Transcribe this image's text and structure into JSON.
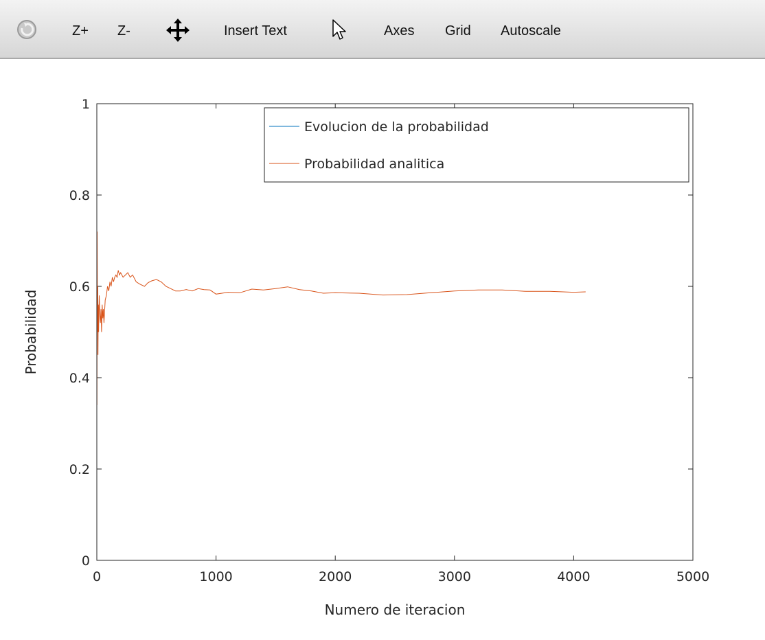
{
  "toolbar": {
    "items": [
      {
        "label": "Z+",
        "name": "zoom-in-button"
      },
      {
        "label": "Z-",
        "name": "zoom-out-button"
      },
      {
        "label": "Insert Text",
        "name": "insert-text-button"
      },
      {
        "label": "Axes",
        "name": "axes-button"
      },
      {
        "label": "Grid",
        "name": "grid-button"
      },
      {
        "label": "Autoscale",
        "name": "autoscale-button"
      }
    ],
    "icons": [
      "rotate-icon",
      "pan-icon",
      "select-pointer-icon"
    ]
  },
  "chart_data": {
    "type": "line",
    "title": "",
    "xlabel": "Numero de iteracion",
    "ylabel": "Probabilidad",
    "xlim": [
      0,
      5000
    ],
    "ylim": [
      0,
      1
    ],
    "x_ticks": [
      "0",
      "1000",
      "2000",
      "3000",
      "4000",
      "5000"
    ],
    "y_ticks": [
      "0",
      "0.2",
      "0.4",
      "0.6",
      "0.8",
      "1"
    ],
    "grid": false,
    "legend_position": "top-right",
    "series": [
      {
        "name": "Evolucion de la probabilidad",
        "color": "#0072bd",
        "x": [],
        "y": []
      },
      {
        "name": "Probabilidad analitica",
        "color": "#d95319",
        "x": [
          1,
          3,
          5,
          8,
          10,
          12,
          15,
          18,
          20,
          25,
          30,
          35,
          40,
          45,
          50,
          55,
          60,
          70,
          80,
          90,
          100,
          110,
          120,
          130,
          140,
          150,
          160,
          170,
          180,
          190,
          200,
          220,
          240,
          260,
          280,
          300,
          330,
          360,
          400,
          430,
          460,
          500,
          540,
          580,
          620,
          660,
          700,
          750,
          800,
          850,
          900,
          950,
          1000,
          1050,
          1100,
          1200,
          1300,
          1400,
          1500,
          1600,
          1700,
          1800,
          1900,
          2000,
          2200,
          2400,
          2600,
          2800,
          3000,
          3200,
          3400,
          3600,
          3800,
          4000,
          4100
        ],
        "y": [
          0.34,
          0.72,
          0.5,
          0.6,
          0.45,
          0.56,
          0.5,
          0.55,
          0.58,
          0.54,
          0.52,
          0.55,
          0.5,
          0.56,
          0.53,
          0.55,
          0.52,
          0.57,
          0.58,
          0.6,
          0.59,
          0.61,
          0.6,
          0.62,
          0.61,
          0.62,
          0.625,
          0.62,
          0.635,
          0.625,
          0.63,
          0.62,
          0.625,
          0.63,
          0.62,
          0.625,
          0.61,
          0.605,
          0.6,
          0.608,
          0.612,
          0.615,
          0.61,
          0.6,
          0.595,
          0.59,
          0.59,
          0.593,
          0.59,
          0.595,
          0.593,
          0.592,
          0.583,
          0.585,
          0.587,
          0.586,
          0.594,
          0.592,
          0.595,
          0.599,
          0.593,
          0.59,
          0.585,
          0.586,
          0.585,
          0.581,
          0.582,
          0.586,
          0.59,
          0.592,
          0.592,
          0.589,
          0.589,
          0.587,
          0.588
        ]
      }
    ]
  }
}
